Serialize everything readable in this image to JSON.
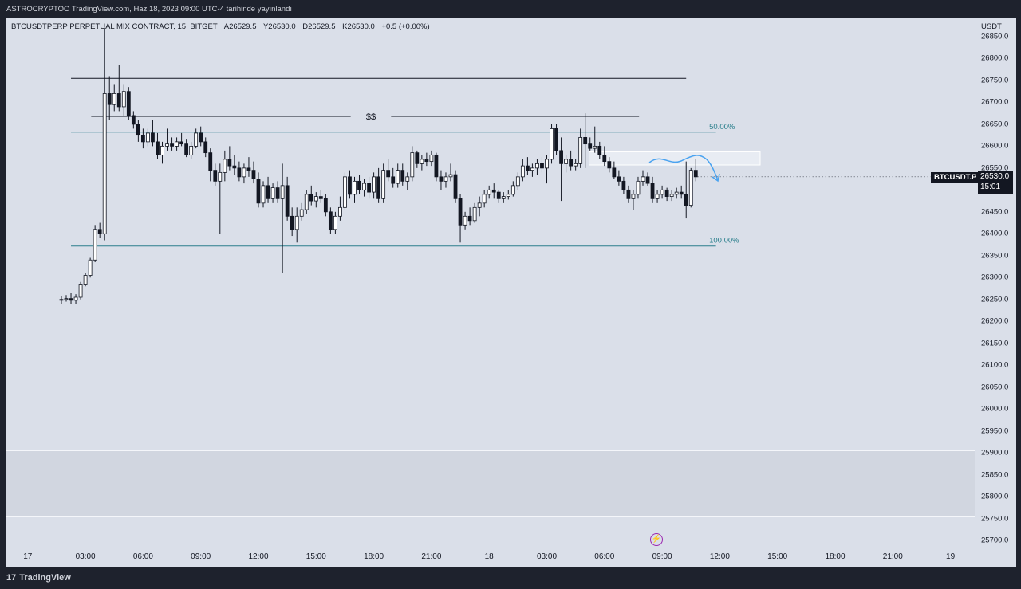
{
  "header": {
    "attribution": "ASTROCRYPTOO TradingView.com, Haz 18, 2023 09:00 UTC-4 tarihinde yayınlandı"
  },
  "legend": {
    "instrument": "BTCUSDTPERP PERPETUAL MIX CONTRACT, 15, BITGET",
    "open": "A26529.5",
    "high": "Y26530.0",
    "low": "D26529.5",
    "close": "K26530.0",
    "change": "+0.5 (+0.00%)"
  },
  "price_axis": {
    "currency": "USDT",
    "symbol_tag": "BTCUSDT.P",
    "last_price": "26530.0",
    "countdown": "15:01"
  },
  "footer": {
    "brand": "TradingView",
    "brand_mark": "17"
  },
  "colors": {
    "background": "#dadfe9",
    "candle": "#131722",
    "fib": "#2a7f8c",
    "arrow": "#4aa3f0"
  },
  "chart_data": {
    "type": "candlestick",
    "interval": "15",
    "yticks": [
      "26850.0",
      "26800.0",
      "26750.0",
      "26700.0",
      "26650.0",
      "26600.0",
      "26550.0",
      "26500.0",
      "26450.0",
      "26400.0",
      "26350.0",
      "26300.0",
      "26250.0",
      "26200.0",
      "26150.0",
      "26100.0",
      "26050.0",
      "26000.0",
      "25950.0",
      "25900.0",
      "25850.0",
      "25800.0",
      "25750.0",
      "25700.0"
    ],
    "ylim": [
      25690,
      26870
    ],
    "xticks": [
      "17",
      "03:00",
      "06:00",
      "09:00",
      "12:00",
      "15:00",
      "18:00",
      "21:00",
      "18",
      "03:00",
      "06:00",
      "09:00",
      "12:00",
      "15:00",
      "18:00",
      "21:00",
      "19"
    ],
    "xlim_hours": [
      -0.5,
      50.5
    ],
    "series": [
      {
        "hour": -0.25,
        "open": 26248,
        "high": 26258,
        "low": 26240,
        "close": 26250
      },
      {
        "hour": 0.0,
        "open": 26250,
        "high": 26260,
        "low": 26245,
        "close": 26252
      },
      {
        "hour": 0.25,
        "open": 26252,
        "high": 26265,
        "low": 26240,
        "close": 26248
      },
      {
        "hour": 0.5,
        "open": 26248,
        "high": 26262,
        "low": 26240,
        "close": 26255
      },
      {
        "hour": 0.75,
        "open": 26255,
        "high": 26290,
        "low": 26250,
        "close": 26285
      },
      {
        "hour": 1.0,
        "open": 26285,
        "high": 26310,
        "low": 26280,
        "close": 26305
      },
      {
        "hour": 1.25,
        "open": 26305,
        "high": 26345,
        "low": 26300,
        "close": 26340
      },
      {
        "hour": 1.5,
        "open": 26340,
        "high": 26420,
        "low": 26335,
        "close": 26410
      },
      {
        "hour": 1.75,
        "open": 26410,
        "high": 26425,
        "low": 26390,
        "close": 26400
      },
      {
        "hour": 2.0,
        "open": 26400,
        "high": 26870,
        "low": 26385,
        "close": 26720
      },
      {
        "hour": 2.25,
        "open": 26720,
        "high": 26760,
        "low": 26660,
        "close": 26695
      },
      {
        "hour": 2.5,
        "open": 26695,
        "high": 26740,
        "low": 26680,
        "close": 26720
      },
      {
        "hour": 2.75,
        "open": 26720,
        "high": 26785,
        "low": 26680,
        "close": 26690
      },
      {
        "hour": 3.0,
        "open": 26690,
        "high": 26740,
        "low": 26670,
        "close": 26725
      },
      {
        "hour": 3.25,
        "open": 26725,
        "high": 26735,
        "low": 26660,
        "close": 26670
      },
      {
        "hour": 3.5,
        "open": 26670,
        "high": 26680,
        "low": 26640,
        "close": 26650
      },
      {
        "hour": 3.75,
        "open": 26650,
        "high": 26660,
        "low": 26610,
        "close": 26625
      },
      {
        "hour": 4.0,
        "open": 26625,
        "high": 26640,
        "low": 26595,
        "close": 26610
      },
      {
        "hour": 4.25,
        "open": 26610,
        "high": 26640,
        "low": 26600,
        "close": 26630
      },
      {
        "hour": 4.5,
        "open": 26630,
        "high": 26660,
        "low": 26600,
        "close": 26610
      },
      {
        "hour": 4.75,
        "open": 26610,
        "high": 26630,
        "low": 26570,
        "close": 26580
      },
      {
        "hour": 5.0,
        "open": 26580,
        "high": 26610,
        "low": 26560,
        "close": 26600
      },
      {
        "hour": 5.25,
        "open": 26600,
        "high": 26640,
        "low": 26590,
        "close": 26605
      },
      {
        "hour": 5.5,
        "open": 26605,
        "high": 26620,
        "low": 26590,
        "close": 26600
      },
      {
        "hour": 5.75,
        "open": 26600,
        "high": 26620,
        "low": 26590,
        "close": 26610
      },
      {
        "hour": 6.0,
        "open": 26610,
        "high": 26630,
        "low": 26600,
        "close": 26605
      },
      {
        "hour": 6.25,
        "open": 26605,
        "high": 26615,
        "low": 26575,
        "close": 26580
      },
      {
        "hour": 6.5,
        "open": 26580,
        "high": 26610,
        "low": 26570,
        "close": 26600
      },
      {
        "hour": 6.75,
        "open": 26600,
        "high": 26640,
        "low": 26595,
        "close": 26630
      },
      {
        "hour": 7.0,
        "open": 26630,
        "high": 26645,
        "low": 26600,
        "close": 26610
      },
      {
        "hour": 7.25,
        "open": 26610,
        "high": 26620,
        "low": 26575,
        "close": 26585
      },
      {
        "hour": 7.5,
        "open": 26585,
        "high": 26595,
        "low": 26520,
        "close": 26545
      },
      {
        "hour": 7.75,
        "open": 26545,
        "high": 26560,
        "low": 26510,
        "close": 26520
      },
      {
        "hour": 8.0,
        "open": 26520,
        "high": 26560,
        "low": 26400,
        "close": 26540
      },
      {
        "hour": 8.25,
        "open": 26540,
        "high": 26590,
        "low": 26520,
        "close": 26570
      },
      {
        "hour": 8.5,
        "open": 26570,
        "high": 26600,
        "low": 26545,
        "close": 26555
      },
      {
        "hour": 8.75,
        "open": 26555,
        "high": 26580,
        "low": 26535,
        "close": 26550
      },
      {
        "hour": 9.0,
        "open": 26550,
        "high": 26565,
        "low": 26520,
        "close": 26530
      },
      {
        "hour": 9.25,
        "open": 26530,
        "high": 26560,
        "low": 26515,
        "close": 26550
      },
      {
        "hour": 9.5,
        "open": 26550,
        "high": 26575,
        "low": 26530,
        "close": 26545
      },
      {
        "hour": 9.75,
        "open": 26545,
        "high": 26565,
        "low": 26515,
        "close": 26525
      },
      {
        "hour": 10.0,
        "open": 26525,
        "high": 26540,
        "low": 26460,
        "close": 26470
      },
      {
        "hour": 10.25,
        "open": 26470,
        "high": 26520,
        "low": 26460,
        "close": 26510
      },
      {
        "hour": 10.5,
        "open": 26510,
        "high": 26530,
        "low": 26470,
        "close": 26480
      },
      {
        "hour": 10.75,
        "open": 26480,
        "high": 26515,
        "low": 26470,
        "close": 26505
      },
      {
        "hour": 11.0,
        "open": 26505,
        "high": 26520,
        "low": 26470,
        "close": 26480
      },
      {
        "hour": 11.25,
        "open": 26480,
        "high": 26560,
        "low": 26310,
        "close": 26510
      },
      {
        "hour": 11.5,
        "open": 26510,
        "high": 26530,
        "low": 26430,
        "close": 26440
      },
      {
        "hour": 11.75,
        "open": 26440,
        "high": 26460,
        "low": 26395,
        "close": 26410
      },
      {
        "hour": 12.0,
        "open": 26410,
        "high": 26460,
        "low": 26380,
        "close": 26440
      },
      {
        "hour": 12.25,
        "open": 26440,
        "high": 26470,
        "low": 26430,
        "close": 26455
      },
      {
        "hour": 12.5,
        "open": 26455,
        "high": 26500,
        "low": 26445,
        "close": 26490
      },
      {
        "hour": 12.75,
        "open": 26490,
        "high": 26510,
        "low": 26465,
        "close": 26475
      },
      {
        "hour": 13.0,
        "open": 26475,
        "high": 26495,
        "low": 26460,
        "close": 26485
      },
      {
        "hour": 13.25,
        "open": 26485,
        "high": 26500,
        "low": 26470,
        "close": 26480
      },
      {
        "hour": 13.5,
        "open": 26480,
        "high": 26490,
        "low": 26440,
        "close": 26450
      },
      {
        "hour": 13.75,
        "open": 26450,
        "high": 26460,
        "low": 26400,
        "close": 26410
      },
      {
        "hour": 14.0,
        "open": 26410,
        "high": 26450,
        "low": 26400,
        "close": 26440
      },
      {
        "hour": 14.25,
        "open": 26440,
        "high": 26485,
        "low": 26430,
        "close": 26460
      },
      {
        "hour": 14.5,
        "open": 26460,
        "high": 26540,
        "low": 26455,
        "close": 26530
      },
      {
        "hour": 14.75,
        "open": 26530,
        "high": 26545,
        "low": 26480,
        "close": 26490
      },
      {
        "hour": 15.0,
        "open": 26490,
        "high": 26530,
        "low": 26470,
        "close": 26520
      },
      {
        "hour": 15.25,
        "open": 26520,
        "high": 26535,
        "low": 26490,
        "close": 26500
      },
      {
        "hour": 15.5,
        "open": 26500,
        "high": 26525,
        "low": 26485,
        "close": 26515
      },
      {
        "hour": 15.75,
        "open": 26515,
        "high": 26530,
        "low": 26480,
        "close": 26495
      },
      {
        "hour": 16.0,
        "open": 26495,
        "high": 26540,
        "low": 26480,
        "close": 26530
      },
      {
        "hour": 16.25,
        "open": 26530,
        "high": 26550,
        "low": 26470,
        "close": 26480
      },
      {
        "hour": 16.5,
        "open": 26480,
        "high": 26560,
        "low": 26470,
        "close": 26545
      },
      {
        "hour": 16.75,
        "open": 26545,
        "high": 26570,
        "low": 26520,
        "close": 26530
      },
      {
        "hour": 17.0,
        "open": 26530,
        "high": 26550,
        "low": 26505,
        "close": 26515
      },
      {
        "hour": 17.25,
        "open": 26515,
        "high": 26560,
        "low": 26505,
        "close": 26545
      },
      {
        "hour": 17.5,
        "open": 26545,
        "high": 26560,
        "low": 26510,
        "close": 26520
      },
      {
        "hour": 17.75,
        "open": 26520,
        "high": 26540,
        "low": 26500,
        "close": 26530
      },
      {
        "hour": 18.0,
        "open": 26530,
        "high": 26600,
        "low": 26520,
        "close": 26585
      },
      {
        "hour": 18.25,
        "open": 26585,
        "high": 26590,
        "low": 26550,
        "close": 26560
      },
      {
        "hour": 18.5,
        "open": 26560,
        "high": 26580,
        "low": 26545,
        "close": 26570
      },
      {
        "hour": 18.75,
        "open": 26570,
        "high": 26585,
        "low": 26555,
        "close": 26565
      },
      {
        "hour": 19.0,
        "open": 26565,
        "high": 26590,
        "low": 26555,
        "close": 26580
      },
      {
        "hour": 19.25,
        "open": 26580,
        "high": 26585,
        "low": 26520,
        "close": 26530
      },
      {
        "hour": 19.5,
        "open": 26530,
        "high": 26545,
        "low": 26500,
        "close": 26520
      },
      {
        "hour": 19.75,
        "open": 26520,
        "high": 26540,
        "low": 26505,
        "close": 26530
      },
      {
        "hour": 20.0,
        "open": 26530,
        "high": 26560,
        "low": 26520,
        "close": 26535
      },
      {
        "hour": 20.25,
        "open": 26535,
        "high": 26545,
        "low": 26470,
        "close": 26480
      },
      {
        "hour": 20.5,
        "open": 26480,
        "high": 26490,
        "low": 26380,
        "close": 26420
      },
      {
        "hour": 20.75,
        "open": 26420,
        "high": 26450,
        "low": 26410,
        "close": 26440
      },
      {
        "hour": 21.0,
        "open": 26440,
        "high": 26460,
        "low": 26420,
        "close": 26430
      },
      {
        "hour": 21.25,
        "open": 26430,
        "high": 26470,
        "low": 26425,
        "close": 26460
      },
      {
        "hour": 21.5,
        "open": 26460,
        "high": 26485,
        "low": 26440,
        "close": 26470
      },
      {
        "hour": 21.75,
        "open": 26470,
        "high": 26500,
        "low": 26460,
        "close": 26490
      },
      {
        "hour": 22.0,
        "open": 26490,
        "high": 26510,
        "low": 26480,
        "close": 26500
      },
      {
        "hour": 22.25,
        "open": 26500,
        "high": 26515,
        "low": 26480,
        "close": 26495
      },
      {
        "hour": 22.5,
        "open": 26495,
        "high": 26500,
        "low": 26470,
        "close": 26480
      },
      {
        "hour": 22.75,
        "open": 26480,
        "high": 26495,
        "low": 26470,
        "close": 26485
      },
      {
        "hour": 23.0,
        "open": 26485,
        "high": 26500,
        "low": 26478,
        "close": 26490
      },
      {
        "hour": 23.25,
        "open": 26490,
        "high": 26520,
        "low": 26485,
        "close": 26510
      },
      {
        "hour": 23.5,
        "open": 26510,
        "high": 26540,
        "low": 26500,
        "close": 26530
      },
      {
        "hour": 23.75,
        "open": 26530,
        "high": 26570,
        "low": 26520,
        "close": 26555
      },
      {
        "hour": 24.0,
        "open": 26555,
        "high": 26575,
        "low": 26535,
        "close": 26545
      },
      {
        "hour": 24.25,
        "open": 26545,
        "high": 26560,
        "low": 26530,
        "close": 26550
      },
      {
        "hour": 24.5,
        "open": 26550,
        "high": 26570,
        "low": 26535,
        "close": 26560
      },
      {
        "hour": 24.75,
        "open": 26560,
        "high": 26575,
        "low": 26540,
        "close": 26550
      },
      {
        "hour": 25.0,
        "open": 26550,
        "high": 26580,
        "low": 26515,
        "close": 26570
      },
      {
        "hour": 25.25,
        "open": 26570,
        "high": 26650,
        "low": 26560,
        "close": 26640
      },
      {
        "hour": 25.5,
        "open": 26640,
        "high": 26650,
        "low": 26580,
        "close": 26590
      },
      {
        "hour": 25.75,
        "open": 26590,
        "high": 26620,
        "low": 26475,
        "close": 26560
      },
      {
        "hour": 26.0,
        "open": 26560,
        "high": 26580,
        "low": 26540,
        "close": 26570
      },
      {
        "hour": 26.25,
        "open": 26570,
        "high": 26590,
        "low": 26545,
        "close": 26555
      },
      {
        "hour": 26.5,
        "open": 26555,
        "high": 26570,
        "low": 26545,
        "close": 26560
      },
      {
        "hour": 26.75,
        "open": 26560,
        "high": 26640,
        "low": 26550,
        "close": 26620
      },
      {
        "hour": 27.0,
        "open": 26620,
        "high": 26675,
        "low": 26550,
        "close": 26605
      },
      {
        "hour": 27.25,
        "open": 26605,
        "high": 26620,
        "low": 26590,
        "close": 26595
      },
      {
        "hour": 27.5,
        "open": 26595,
        "high": 26645,
        "low": 26585,
        "close": 26600
      },
      {
        "hour": 27.75,
        "open": 26600,
        "high": 26610,
        "low": 26570,
        "close": 26580
      },
      {
        "hour": 28.0,
        "open": 26580,
        "high": 26600,
        "low": 26555,
        "close": 26565
      },
      {
        "hour": 28.25,
        "open": 26565,
        "high": 26575,
        "low": 26540,
        "close": 26550
      },
      {
        "hour": 28.5,
        "open": 26550,
        "high": 26565,
        "low": 26525,
        "close": 26530
      },
      {
        "hour": 28.75,
        "open": 26530,
        "high": 26545,
        "low": 26510,
        "close": 26520
      },
      {
        "hour": 29.0,
        "open": 26520,
        "high": 26530,
        "low": 26490,
        "close": 26500
      },
      {
        "hour": 29.25,
        "open": 26500,
        "high": 26510,
        "low": 26470,
        "close": 26480
      },
      {
        "hour": 29.5,
        "open": 26480,
        "high": 26500,
        "low": 26455,
        "close": 26490
      },
      {
        "hour": 29.75,
        "open": 26490,
        "high": 26530,
        "low": 26480,
        "close": 26520
      },
      {
        "hour": 30.0,
        "open": 26520,
        "high": 26545,
        "low": 26510,
        "close": 26530
      },
      {
        "hour": 30.25,
        "open": 26530,
        "high": 26540,
        "low": 26510,
        "close": 26515
      },
      {
        "hour": 30.5,
        "open": 26515,
        "high": 26530,
        "low": 26470,
        "close": 26480
      },
      {
        "hour": 30.75,
        "open": 26480,
        "high": 26500,
        "low": 26470,
        "close": 26490
      },
      {
        "hour": 31.0,
        "open": 26490,
        "high": 26510,
        "low": 26480,
        "close": 26500
      },
      {
        "hour": 31.25,
        "open": 26500,
        "high": 26505,
        "low": 26475,
        "close": 26485
      },
      {
        "hour": 31.5,
        "open": 26485,
        "high": 26500,
        "low": 26475,
        "close": 26490
      },
      {
        "hour": 31.75,
        "open": 26490,
        "high": 26505,
        "low": 26480,
        "close": 26495
      },
      {
        "hour": 32.0,
        "open": 26495,
        "high": 26510,
        "low": 26480,
        "close": 26490
      },
      {
        "hour": 32.25,
        "open": 26490,
        "high": 26565,
        "low": 26435,
        "close": 26465
      },
      {
        "hour": 32.5,
        "open": 26465,
        "high": 26550,
        "low": 26460,
        "close": 26545
      },
      {
        "hour": 32.75,
        "open": 26545,
        "high": 26570,
        "low": 26520,
        "close": 26530
      }
    ],
    "annotations": {
      "range_high": 26755,
      "liquidity_line": {
        "value": 26668,
        "label": "$$"
      },
      "fib_50": {
        "value": 26632,
        "label": "50.00%"
      },
      "fib_100": {
        "value": 26372,
        "label": "100.00%"
      },
      "supply_box": [
        26557,
        26587
      ],
      "projection": "sideways-then-down"
    }
  }
}
